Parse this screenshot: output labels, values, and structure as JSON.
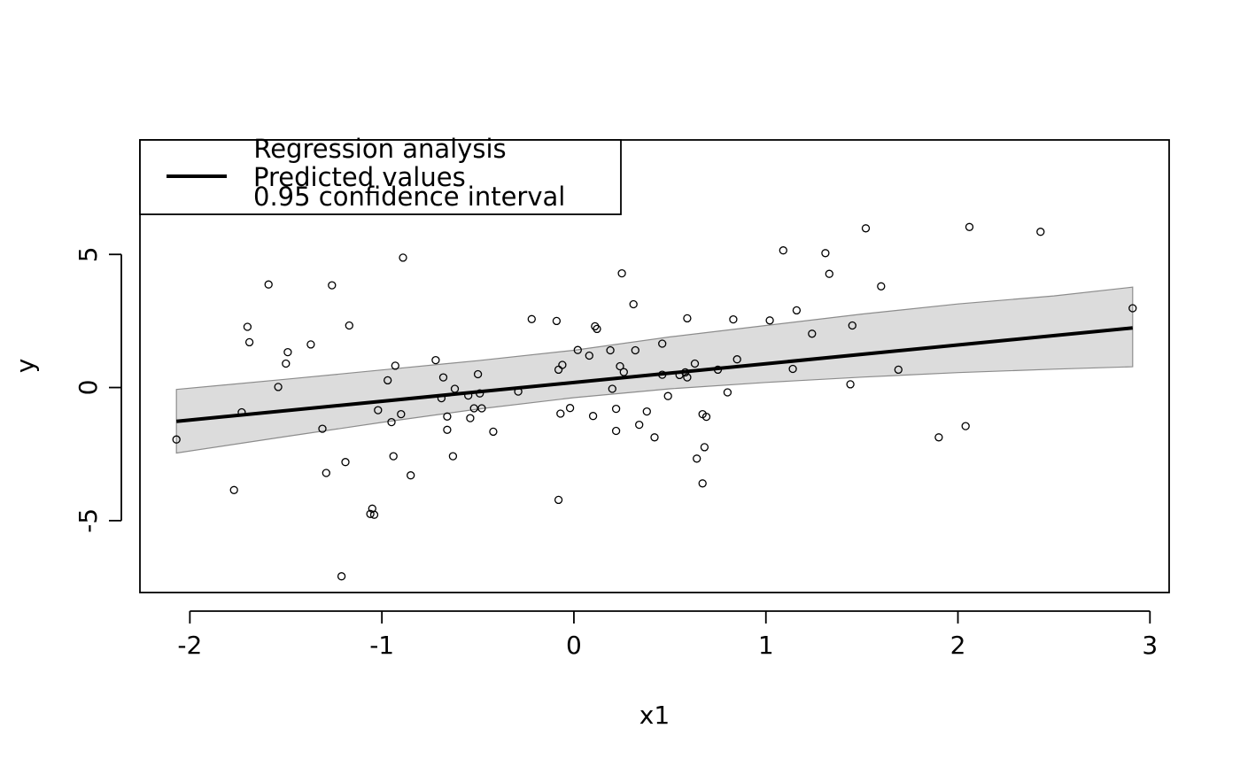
{
  "chart_data": {
    "type": "scatter",
    "xlabel": "x1",
    "ylabel": "y",
    "xlim": [
      -2.26,
      3.1
    ],
    "ylim": [
      -7.7,
      9.3
    ],
    "x_ticks": [
      -2,
      -1,
      0,
      1,
      2,
      3
    ],
    "y_ticks": [
      -5,
      0,
      5
    ],
    "x_tick_labels": [
      "-2",
      "-1",
      "0",
      "1",
      "2",
      "3"
    ],
    "y_tick_labels": [
      "-5",
      "0",
      "5"
    ],
    "grid": false,
    "legend": {
      "placement": "top-left",
      "title": "Regression analysis",
      "entries": [
        "Predicted values",
        "0.95 confidence interval"
      ]
    },
    "fit_line": {
      "name": "Predicted values",
      "x": [
        -2.07,
        2.91
      ],
      "y": [
        -1.27,
        2.24
      ]
    },
    "confidence_band": {
      "name": "0.95 confidence interval",
      "x": [
        -2.07,
        -1.5,
        -1.0,
        -0.5,
        0.0,
        0.5,
        1.0,
        1.5,
        2.0,
        2.5,
        2.91
      ],
      "lower": [
        -2.46,
        -1.84,
        -1.31,
        -0.81,
        -0.38,
        -0.05,
        0.19,
        0.39,
        0.56,
        0.69,
        0.78
      ],
      "upper": [
        -0.07,
        0.31,
        0.66,
        1.01,
        1.4,
        1.9,
        2.33,
        2.76,
        3.14,
        3.44,
        3.77
      ]
    },
    "points": [
      [
        -2.07,
        -1.95
      ],
      [
        -1.77,
        -3.85
      ],
      [
        -1.73,
        -0.93
      ],
      [
        -1.7,
        2.28
      ],
      [
        -1.69,
        1.7
      ],
      [
        -1.59,
        3.87
      ],
      [
        -1.54,
        0.02
      ],
      [
        -1.5,
        0.9
      ],
      [
        -1.49,
        1.33
      ],
      [
        -1.37,
        1.62
      ],
      [
        -1.31,
        -1.55
      ],
      [
        -1.29,
        -3.21
      ],
      [
        -1.26,
        3.84
      ],
      [
        -1.19,
        -2.8
      ],
      [
        -1.21,
        -7.09
      ],
      [
        -1.17,
        2.33
      ],
      [
        -1.06,
        -4.75
      ],
      [
        -1.05,
        -4.55
      ],
      [
        -1.04,
        -4.78
      ],
      [
        -1.02,
        -0.85
      ],
      [
        -0.97,
        0.27
      ],
      [
        -0.95,
        -1.3
      ],
      [
        -0.94,
        -2.58
      ],
      [
        -0.93,
        0.82
      ],
      [
        -0.9,
        -1.0
      ],
      [
        -0.89,
        4.88
      ],
      [
        -0.85,
        -3.3
      ],
      [
        -0.72,
        1.03
      ],
      [
        -0.69,
        -0.4
      ],
      [
        -0.68,
        0.38
      ],
      [
        -0.66,
        -1.59
      ],
      [
        -0.66,
        -1.09
      ],
      [
        -0.63,
        -2.58
      ],
      [
        -0.62,
        -0.05
      ],
      [
        -0.55,
        -0.3
      ],
      [
        -0.54,
        -1.15
      ],
      [
        -0.52,
        -0.78
      ],
      [
        -0.5,
        0.5
      ],
      [
        -0.49,
        -0.22
      ],
      [
        -0.48,
        -0.78
      ],
      [
        -0.42,
        -1.66
      ],
      [
        -0.29,
        -0.15
      ],
      [
        -0.22,
        2.57
      ],
      [
        -0.09,
        2.5
      ],
      [
        -0.08,
        0.67
      ],
      [
        -0.08,
        -4.22
      ],
      [
        -0.07,
        -0.98
      ],
      [
        -0.06,
        0.85
      ],
      [
        -0.02,
        -0.77
      ],
      [
        0.02,
        1.41
      ],
      [
        0.08,
        1.2
      ],
      [
        0.1,
        -1.07
      ],
      [
        0.11,
        2.3
      ],
      [
        0.12,
        2.2
      ],
      [
        0.19,
        1.4
      ],
      [
        0.2,
        -0.05
      ],
      [
        0.22,
        -0.8
      ],
      [
        0.22,
        -1.63
      ],
      [
        0.24,
        0.8
      ],
      [
        0.25,
        4.29
      ],
      [
        0.26,
        0.58
      ],
      [
        0.31,
        3.13
      ],
      [
        0.32,
        1.4
      ],
      [
        0.34,
        -1.4
      ],
      [
        0.38,
        -0.9
      ],
      [
        0.42,
        -1.87
      ],
      [
        0.46,
        1.65
      ],
      [
        0.46,
        0.48
      ],
      [
        0.49,
        -0.32
      ],
      [
        0.55,
        0.47
      ],
      [
        0.58,
        0.57
      ],
      [
        0.59,
        2.6
      ],
      [
        0.59,
        0.38
      ],
      [
        0.63,
        0.9
      ],
      [
        0.64,
        -2.67
      ],
      [
        0.67,
        -1.0
      ],
      [
        0.67,
        -3.6
      ],
      [
        0.68,
        -2.24
      ],
      [
        0.69,
        -1.1
      ],
      [
        0.75,
        0.67
      ],
      [
        0.8,
        -0.18
      ],
      [
        0.83,
        2.56
      ],
      [
        0.85,
        1.06
      ],
      [
        1.02,
        2.52
      ],
      [
        1.09,
        5.15
      ],
      [
        1.14,
        0.7
      ],
      [
        1.16,
        2.9
      ],
      [
        1.24,
        2.02
      ],
      [
        1.31,
        5.05
      ],
      [
        1.33,
        4.27
      ],
      [
        1.44,
        0.12
      ],
      [
        1.45,
        2.33
      ],
      [
        1.52,
        5.98
      ],
      [
        1.6,
        3.8
      ],
      [
        1.69,
        0.67
      ],
      [
        1.9,
        -1.87
      ],
      [
        2.04,
        -1.45
      ],
      [
        2.06,
        6.03
      ],
      [
        2.43,
        5.85
      ],
      [
        2.91,
        2.98
      ]
    ]
  }
}
